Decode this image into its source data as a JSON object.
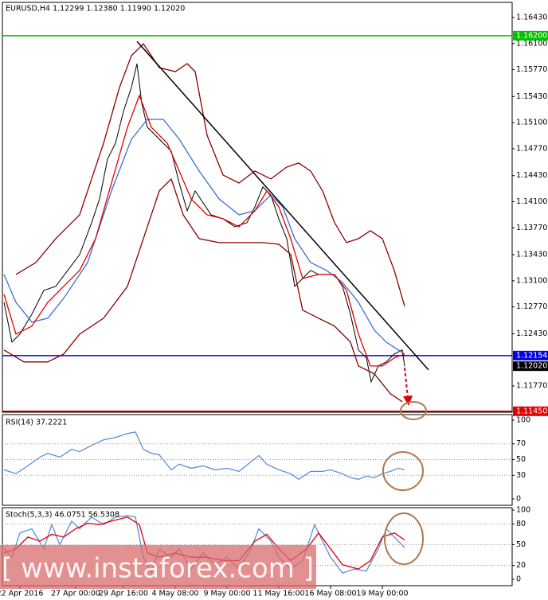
{
  "chart_data": [
    {
      "type": "line",
      "title": "EURUSD,H4  1.12299 1.12380 1.11990 1.12020",
      "xlim": [
        0,
        128
      ],
      "ylim": [
        1.11448,
        1.16601
      ],
      "yticks": [
        {
          "value": 1.1643,
          "label": "1.16430"
        },
        {
          "value": 1.161,
          "label": "1.16100"
        },
        {
          "value": 1.1577,
          "label": "1.15770"
        },
        {
          "value": 1.1543,
          "label": "1.15430"
        },
        {
          "value": 1.151,
          "label": "1.15100"
        },
        {
          "value": 1.1477,
          "label": "1.14770"
        },
        {
          "value": 1.1443,
          "label": "1.14430"
        },
        {
          "value": 1.141,
          "label": "1.14100"
        },
        {
          "value": 1.1377,
          "label": "1.13770"
        },
        {
          "value": 1.1343,
          "label": "1.13430"
        },
        {
          "value": 1.131,
          "label": "1.13100"
        },
        {
          "value": 1.1277,
          "label": "1.12770"
        },
        {
          "value": 1.1243,
          "label": "1.12430"
        },
        {
          "value": 1.1177,
          "label": "1.11770"
        }
      ],
      "series": [
        {
          "name": "EURUSD",
          "color": "#000000",
          "x": [
            1,
            3,
            5,
            8,
            11,
            14,
            17,
            20,
            23,
            25,
            27,
            29,
            31,
            33,
            34.4,
            35.6,
            37,
            39,
            41,
            43,
            45,
            47,
            49,
            51,
            53,
            56,
            59,
            62,
            64,
            66,
            68,
            70,
            72,
            74,
            76,
            78,
            80,
            82,
            84,
            86,
            88,
            90,
            92,
            93.2,
            95,
            97,
            99,
            101,
            101.6
          ],
          "values": [
            1.12828,
            1.12325,
            1.12426,
            1.12677,
            1.12979,
            1.1303,
            1.13231,
            1.13432,
            1.13834,
            1.14136,
            1.14639,
            1.1484,
            1.15243,
            1.15545,
            1.15846,
            1.15343,
            1.15042,
            1.14941,
            1.1484,
            1.1474,
            1.14337,
            1.13985,
            1.14237,
            1.14086,
            1.13935,
            1.13885,
            1.13784,
            1.13834,
            1.14035,
            1.14287,
            1.14187,
            1.13885,
            1.13633,
            1.1303,
            1.1313,
            1.13231,
            1.1318,
            1.1318,
            1.1318,
            1.1303,
            1.12677,
            1.12225,
            1.12124,
            1.11822,
            1.12023,
            1.12074,
            1.12175,
            1.12225,
            1.1202
          ]
        },
        {
          "name": "Upper Band",
          "color": "#8b0000",
          "x": [
            4,
            9,
            14,
            20,
            26,
            30,
            33,
            36,
            40,
            44,
            47,
            49,
            52,
            56,
            60,
            64,
            68,
            72,
            75,
            78,
            81,
            84,
            87,
            90,
            93,
            96,
            99,
            101.6
          ],
          "values": [
            1.1318,
            1.13331,
            1.13633,
            1.13935,
            1.1484,
            1.15545,
            1.15947,
            1.16098,
            1.15796,
            1.15746,
            1.15846,
            1.15746,
            1.14941,
            1.14438,
            1.14337,
            1.14488,
            1.14388,
            1.14539,
            1.14589,
            1.14488,
            1.14237,
            1.13834,
            1.13583,
            1.13633,
            1.13734,
            1.13633,
            1.13231,
            1.12778
          ]
        },
        {
          "name": "Lower Band",
          "color": "#8b0000",
          "x": [
            1,
            6,
            12,
            16,
            20,
            26,
            32,
            36,
            40,
            43,
            46,
            50,
            55,
            60,
            66,
            70,
            73,
            76,
            80,
            84,
            88,
            90,
            94,
            98,
            101
          ],
          "values": [
            1.12225,
            1.12074,
            1.12074,
            1.12175,
            1.12426,
            1.12627,
            1.1303,
            1.13633,
            1.14237,
            1.14388,
            1.13935,
            1.13633,
            1.13583,
            1.13583,
            1.13583,
            1.13563,
            1.13432,
            1.12728,
            1.12627,
            1.12527,
            1.12325,
            1.12023,
            1.11923,
            1.11672,
            1.11571
          ]
        },
        {
          "name": "Slow MA",
          "color": "#3a6fd8",
          "x": [
            1,
            4,
            8,
            12,
            16,
            22,
            28,
            33,
            37,
            41,
            45,
            50,
            55,
            60,
            64,
            68,
            71,
            74,
            78,
            82,
            86,
            90,
            94,
            97,
            100,
            101.6
          ],
          "values": [
            1.1318,
            1.12828,
            1.12577,
            1.12627,
            1.12879,
            1.13331,
            1.14237,
            1.14891,
            1.15142,
            1.15142,
            1.14891,
            1.14488,
            1.14136,
            1.13935,
            1.13985,
            1.14187,
            1.14035,
            1.13633,
            1.13331,
            1.13231,
            1.1308,
            1.12828,
            1.12476,
            1.12325,
            1.12225,
            1.12175
          ]
        },
        {
          "name": "Fast MA",
          "color": "#e00000",
          "x": [
            1,
            4,
            8,
            12,
            16,
            20,
            24,
            28,
            32,
            35,
            38,
            42,
            45,
            48,
            52,
            56,
            60,
            64,
            67,
            70,
            73,
            76,
            80,
            84,
            87,
            90,
            93,
            96,
            99,
            101.6
          ],
          "values": [
            1.12929,
            1.12426,
            1.12527,
            1.12828,
            1.1303,
            1.13231,
            1.13633,
            1.14337,
            1.15042,
            1.15444,
            1.15042,
            1.1484,
            1.14488,
            1.14136,
            1.13935,
            1.13885,
            1.13784,
            1.13985,
            1.14237,
            1.14035,
            1.13633,
            1.1313,
            1.1318,
            1.1318,
            1.12979,
            1.12426,
            1.12023,
            1.12023,
            1.12124,
            1.12175
          ]
        }
      ],
      "trendline": {
        "color": "#000000",
        "x": [
          34.4,
          107.6
        ],
        "values": [
          1.16128,
          1.11973
        ]
      },
      "levels": [
        {
          "value": 1.162,
          "label": "1.16200",
          "color": "#00c000"
        },
        {
          "value": 1.12154,
          "label": "1.12154",
          "color": "#0000e0"
        },
        {
          "value": 1.1145,
          "label": "1.11450",
          "color": "#e00000"
        }
      ],
      "last_price": {
        "value": 1.1202,
        "label": "1.12020",
        "color": "#000000"
      }
    },
    {
      "type": "line",
      "title": "RSI(14) 37.2221",
      "xlim": [
        0,
        128
      ],
      "ylim": [
        0,
        100
      ],
      "yticks": [
        100,
        70,
        50,
        30,
        0
      ],
      "grid": true,
      "series": [
        {
          "name": "RSI",
          "color": "#5b8fd8",
          "x": [
            1,
            4,
            7,
            10,
            12,
            15,
            18,
            20,
            23,
            26,
            29,
            32,
            34,
            36,
            38,
            40,
            43,
            45,
            48,
            51,
            54,
            57,
            60,
            63,
            65,
            67,
            70,
            73,
            75,
            78,
            81,
            83,
            86,
            88,
            90,
            92,
            94,
            96,
            98,
            100,
            101.6
          ],
          "values": [
            37,
            32,
            42,
            53,
            58,
            53,
            63,
            60,
            68,
            75,
            78,
            83,
            85,
            63,
            58,
            56,
            37,
            44,
            39,
            42,
            37,
            39,
            35,
            47,
            55,
            44,
            37,
            32,
            25,
            35,
            35,
            37,
            32,
            27,
            25,
            29,
            27,
            32,
            35,
            39,
            37.2
          ]
        }
      ]
    },
    {
      "type": "line",
      "title": "Stoch(5,3,3) 46.0751 56.5308",
      "xlim": [
        0,
        128
      ],
      "ylim": [
        0,
        100
      ],
      "yticks": [
        100,
        80,
        50,
        20,
        0
      ],
      "grid": true,
      "xticks": [
        {
          "value": 5,
          "label": "22 Apr 2016"
        },
        {
          "value": 19,
          "label": "27 Apr 00:00"
        },
        {
          "value": 31,
          "label": "29 Apr 16:00"
        },
        {
          "value": 44,
          "label": "4 May 08:00"
        },
        {
          "value": 57,
          "label": "9 May 00:00"
        },
        {
          "value": 70,
          "label": "11 May 16:00"
        },
        {
          "value": 83,
          "label": "16 May 08:00"
        },
        {
          "value": 96,
          "label": "19 May 00:00"
        }
      ],
      "series": [
        {
          "name": "Main",
          "color": "#5b8fd8",
          "x": [
            1,
            3,
            5,
            8,
            11,
            13,
            15,
            18,
            20,
            23,
            26,
            29,
            32,
            34,
            36,
            38,
            40,
            43,
            45,
            48,
            51,
            54,
            57,
            60,
            63,
            65,
            68,
            70,
            73,
            76,
            79,
            81,
            83,
            86,
            89,
            92,
            95,
            97,
            99,
            101.6
          ],
          "values": [
            44,
            32,
            67,
            73,
            44,
            79,
            50,
            84,
            73,
            90,
            79,
            90,
            92,
            90,
            32,
            9,
            44,
            32,
            44,
            15,
            38,
            21,
            32,
            15,
            44,
            73,
            55,
            32,
            15,
            27,
            79,
            55,
            32,
            9,
            15,
            12,
            44,
            73,
            61,
            46
          ]
        },
        {
          "name": "Signal",
          "color": "#e00000",
          "x": [
            1,
            4,
            7,
            10,
            13,
            16,
            19,
            22,
            25,
            28,
            32,
            35,
            37,
            40,
            44,
            48,
            52,
            56,
            60,
            64,
            67,
            70,
            73,
            77,
            80,
            83,
            86,
            90,
            93,
            96,
            99,
            101.6
          ],
          "values": [
            38,
            44,
            61,
            55,
            65,
            61,
            73,
            81,
            79,
            84,
            90,
            79,
            38,
            32,
            38,
            32,
            32,
            27,
            27,
            55,
            65,
            44,
            27,
            44,
            67,
            44,
            21,
            15,
            27,
            61,
            67,
            57
          ]
        }
      ],
      "watermark": "[ www.instaforex.com ]"
    }
  ]
}
